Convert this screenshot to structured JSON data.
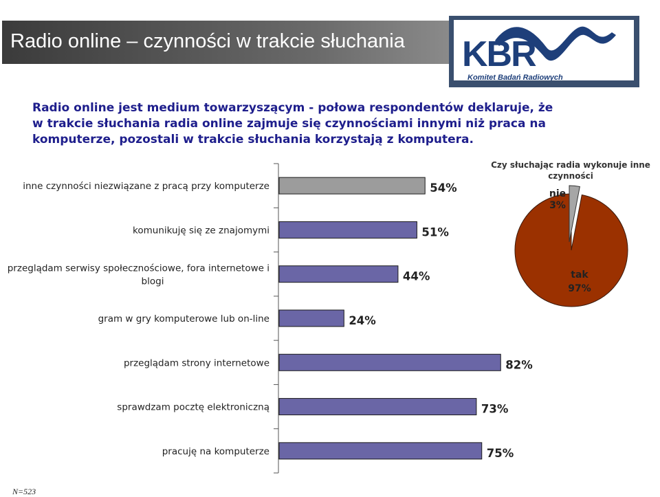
{
  "header": {
    "title": "Radio online – czynności w trakcie słuchania"
  },
  "logo": {
    "name": "KBR",
    "subtitle": "Komitet Badań Radiowych"
  },
  "headline": {
    "lines": [
      "Radio online jest medium towarzyszącym - połowa respondentów deklaruje, że",
      "w trakcie słuchania radia online zajmuje się czynnościami innymi niż praca na",
      "komputerze, pozostali w trakcie słuchania korzystają z komputera."
    ]
  },
  "footnote": "N=523",
  "colors": {
    "bar_highlight": "#9c9c9c",
    "bar_default": "#6a66a6",
    "pie_yes": "#9b3100",
    "pie_no": "#a6a6a6"
  },
  "chart_data": [
    {
      "type": "bar",
      "orientation": "horizontal",
      "categories": [
        "inne czynności niezwiązane z pracą przy komputerze",
        "komunikuję się ze znajomymi",
        "przeglądam serwisy społecznościowe, fora internetowe i blogi",
        "gram w gry komputerowe lub on-line",
        "przeglądam strony internetowe",
        "sprawdzam pocztę elektroniczną",
        "pracuję na komputerze"
      ],
      "values": [
        54,
        51,
        44,
        24,
        82,
        73,
        75
      ],
      "data_labels": [
        "54%",
        "51%",
        "44%",
        "24%",
        "82%",
        "73%",
        "75%"
      ],
      "unit": "%",
      "xlim": [
        0,
        100
      ],
      "grid": false
    },
    {
      "type": "pie",
      "title": "Czy słuchając radia wykonuje inne czynności",
      "labels": [
        "nie",
        "tak"
      ],
      "values": [
        3,
        97
      ],
      "data_labels": [
        "3%",
        "97%"
      ]
    }
  ]
}
